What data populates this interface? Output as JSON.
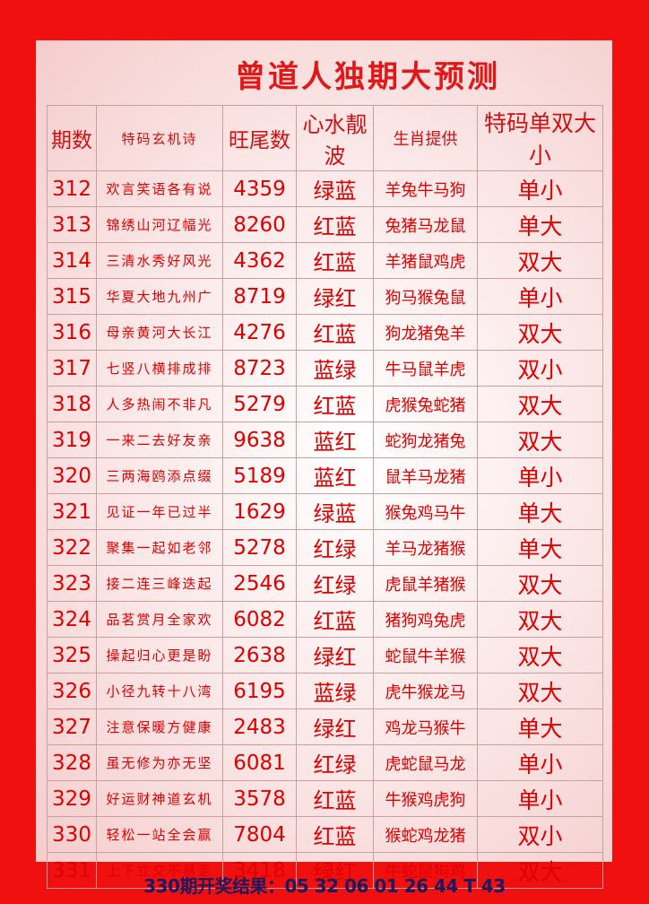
{
  "header": {
    "title": "曾道人独期大预测"
  },
  "table": {
    "columns": [
      "期数",
      "特码玄机诗",
      "旺尾数",
      "心水靓波",
      "生肖提供",
      "特码单双大小"
    ],
    "rows": [
      [
        "312",
        "欢言笑语各有说",
        "4359",
        "绿蓝",
        "羊兔牛马狗",
        "单小"
      ],
      [
        "313",
        "锦绣山河辽幅光",
        "8260",
        "红蓝",
        "兔猪马龙鼠",
        "单大"
      ],
      [
        "314",
        "三清水秀好风光",
        "4362",
        "红蓝",
        "羊猪鼠鸡虎",
        "双大"
      ],
      [
        "315",
        "华夏大地九州广",
        "8719",
        "绿红",
        "狗马猴兔鼠",
        "单小"
      ],
      [
        "316",
        "母亲黄河大长江",
        "4276",
        "红蓝",
        "狗龙猪兔羊",
        "双大"
      ],
      [
        "317",
        "七竖八横排成排",
        "8723",
        "蓝绿",
        "牛马鼠羊虎",
        "双小"
      ],
      [
        "318",
        "人多热闹不非凡",
        "5279",
        "红蓝",
        "虎猴兔蛇猪",
        "双大"
      ],
      [
        "319",
        "一来二去好友亲",
        "9638",
        "蓝红",
        "蛇狗龙猪兔",
        "双大"
      ],
      [
        "320",
        "三两海鸥添点缀",
        "5189",
        "蓝红",
        "鼠羊马龙猪",
        "单小"
      ],
      [
        "321",
        "见证一年已过半",
        "1629",
        "绿蓝",
        "猴兔鸡马牛",
        "单大"
      ],
      [
        "322",
        "聚集一起如老邻",
        "5278",
        "红绿",
        "羊马龙猪猴",
        "单大"
      ],
      [
        "323",
        "接二连三峰迭起",
        "2546",
        "红绿",
        "虎鼠羊猪猴",
        "双大"
      ],
      [
        "324",
        "品茗赏月全家欢",
        "6082",
        "红蓝",
        "猪狗鸡兔虎",
        "双大"
      ],
      [
        "325",
        "操起归心更是盼",
        "2638",
        "绿红",
        "蛇鼠牛羊猴",
        "双大"
      ],
      [
        "326",
        "小径九转十八湾",
        "6195",
        "蓝绿",
        "虎牛猴龙马",
        "双大"
      ],
      [
        "327",
        "注意保暖方健康",
        "2483",
        "绿红",
        "鸡龙马猴牛",
        "单大"
      ],
      [
        "328",
        "虽无修为亦无坚",
        "6081",
        "红绿",
        "虎蛇鼠马龙",
        "单小"
      ],
      [
        "329",
        "好运财神道玄机",
        "3578",
        "红蓝",
        "牛猴鸡虎狗",
        "单小"
      ],
      [
        "330",
        "轻松一站全会赢",
        "7804",
        "红蓝",
        "猴蛇鸡龙猪",
        "双小"
      ],
      [
        "331",
        "上下立交不易走",
        "3418",
        "绿红",
        "牛蛇鼠狗鸡",
        "双大"
      ]
    ]
  },
  "footer": {
    "result": "330期开奖结果：05 32 06 01 26 44 T 43"
  }
}
